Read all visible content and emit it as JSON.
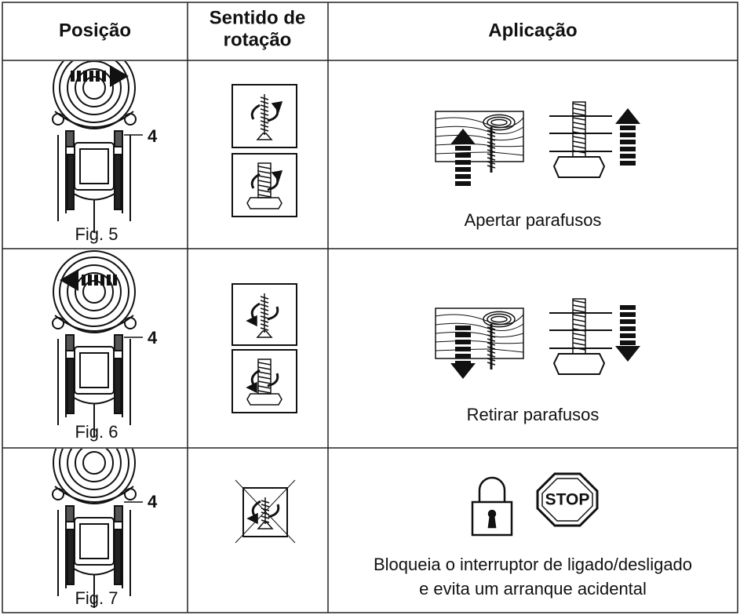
{
  "header": {
    "columns": [
      "Posição",
      [
        "Sentido de",
        "rotação"
      ],
      "Aplicação"
    ]
  },
  "rows": [
    {
      "figure": "Fig. 5",
      "callout": "4",
      "application": [
        "Apertar parafusos"
      ]
    },
    {
      "figure": "Fig. 6",
      "callout": "4",
      "application": [
        "Retirar parafusos"
      ]
    },
    {
      "figure": "Fig. 7",
      "callout": "4",
      "stop_sign": "STOP",
      "application": [
        "Bloqueia o interruptor de ligado/desligado",
        "e evita um arranque acidental"
      ]
    }
  ]
}
